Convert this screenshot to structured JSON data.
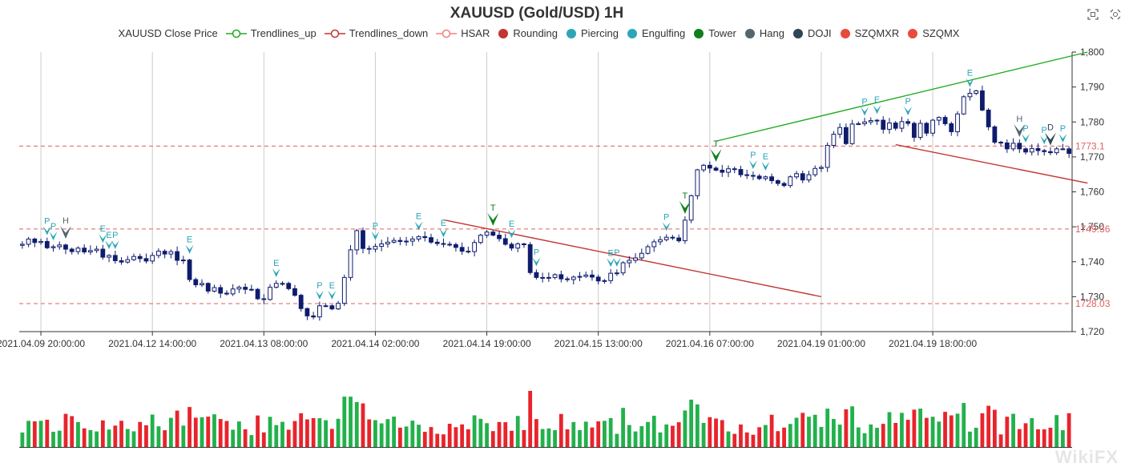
{
  "title": "XAUUSD (Gold/USD) 1H",
  "toolbox": {
    "zoom_icon": "zoom-icon",
    "restore_icon": "restore-icon"
  },
  "legend": [
    {
      "label": "XAUUSD Close Price",
      "symbol": "none",
      "color": "#333333"
    },
    {
      "label": "Trendlines_up",
      "symbol": "line-circle",
      "color": "#22aa22"
    },
    {
      "label": "Trendlines_down",
      "symbol": "line-circle",
      "color": "#c23531"
    },
    {
      "label": "HSAR",
      "symbol": "line-circle",
      "color": "#f08080"
    },
    {
      "label": "Rounding",
      "symbol": "dot",
      "color": "#c23531"
    },
    {
      "label": "Piercing",
      "symbol": "dot",
      "color": "#2ca6b7"
    },
    {
      "label": "Engulfing",
      "symbol": "dot",
      "color": "#2ca6b7"
    },
    {
      "label": "Tower",
      "symbol": "dot",
      "color": "#0e7f1b"
    },
    {
      "label": "Hang",
      "symbol": "dot",
      "color": "#546570"
    },
    {
      "label": "DOJI",
      "symbol": "dot",
      "color": "#2f4554"
    },
    {
      "label": "SZQMXR",
      "symbol": "dot",
      "color": "#e84b3c"
    },
    {
      "label": "SZQMX",
      "symbol": "dot",
      "color": "#e84b3c"
    }
  ],
  "watermark": "WikiFX",
  "colors": {
    "candle": "#0f1c6d",
    "volume_up": "#22b14c",
    "volume_down": "#e8242c",
    "trend_up": "#22aa22",
    "trend_down": "#c23531",
    "level": "#e06060",
    "grid": "#cccccc",
    "piercing": "#2ca6b7",
    "tower": "#0e7f1b",
    "hang": "#546570",
    "doji": "#2f4554"
  },
  "chart_data": {
    "type": "candlestick",
    "title": "XAUUSD (Gold/USD) 1H",
    "y_axis": {
      "min": 1720,
      "max": 1800,
      "ticks": [
        "1,720",
        "1,730",
        "1,740",
        "1,750",
        "1,760",
        "1,770",
        "1,780",
        "1,790",
        "1,800"
      ],
      "position": "right"
    },
    "x_axis": {
      "tick_labels": [
        "2021.04.09 20:00:00",
        "2021.04.12 14:00:00",
        "2021.04.13 08:00:00",
        "2021.04.14 02:00:00",
        "2021.04.14 19:00:00",
        "2021.04.15 13:00:00",
        "2021.04.16 07:00:00",
        "2021.04.19 01:00:00",
        "2021.04.19 18:00:00"
      ],
      "tick_indices": [
        3,
        21,
        39,
        57,
        75,
        93,
        111,
        129,
        147
      ]
    },
    "closes": [
      1745,
      1746.5,
      1745.5,
      1745.8,
      1744,
      1744.3,
      1744.8,
      1743.6,
      1742.9,
      1743.9,
      1742.8,
      1743.2,
      1743.6,
      1741.3,
      1741.8,
      1740.3,
      1739.9,
      1740.6,
      1741.5,
      1740.9,
      1740.2,
      1741.8,
      1743,
      1742.2,
      1742.9,
      1740.4,
      1740.5,
      1734.9,
      1733.4,
      1733.8,
      1731.6,
      1732.6,
      1731,
      1730.8,
      1732.2,
      1732.7,
      1732.1,
      1732.1,
      1729.4,
      1729.2,
      1732.7,
      1733.8,
      1733.8,
      1732.3,
      1730.4,
      1726.6,
      1724.5,
      1724.2,
      1727.4,
      1727.4,
      1726.5,
      1728.1,
      1735.5,
      1743.4,
      1748.9,
      1743.8,
      1743.6,
      1744.4,
      1745.1,
      1745.6,
      1746.1,
      1745.8,
      1745.9,
      1746.5,
      1747.2,
      1746.9,
      1745.6,
      1745.2,
      1745,
      1744.9,
      1744.1,
      1743,
      1742.9,
      1745.5,
      1747.6,
      1748.5,
      1747.6,
      1746.6,
      1745,
      1743.9,
      1745.1,
      1744.9,
      1736.9,
      1735.5,
      1735.5,
      1735.5,
      1736.3,
      1735.1,
      1734.9,
      1735.6,
      1735.8,
      1736.2,
      1735.6,
      1734.5,
      1734.6,
      1736.7,
      1736.8,
      1739.7,
      1740.4,
      1741.1,
      1742.4,
      1744.3,
      1745.7,
      1746.3,
      1747,
      1746.8,
      1746,
      1751.9,
      1758.9,
      1766.3,
      1767.6,
      1766.8,
      1766.2,
      1765.6,
      1766.6,
      1766.4,
      1764.9,
      1764.7,
      1764.5,
      1763.8,
      1764.3,
      1763.2,
      1762.4,
      1761.8,
      1764.3,
      1765.2,
      1763.4,
      1764.9,
      1766.7,
      1767,
      1773.3,
      1776.5,
      1778.4,
      1773.8,
      1779.4,
      1779.5,
      1780,
      1780.4,
      1780.5,
      1777.9,
      1779.7,
      1778.2,
      1780.1,
      1779.6,
      1775.6,
      1779.6,
      1776.8,
      1780.5,
      1781.3,
      1779.5,
      1777.2,
      1782.3,
      1787.2,
      1788.2,
      1788.9,
      1783.4,
      1778.6,
      1774.2,
      1774,
      1772.3,
      1773.9,
      1772.3,
      1771.4,
      1772.4,
      1771.8,
      1771.5,
      1771.2,
      1772.3,
      1772.3,
      1771
    ],
    "levels": [
      {
        "value": 1773.1,
        "label": "1773.1"
      },
      {
        "value": 1749.36,
        "label": "1749.36"
      },
      {
        "value": 1728.03,
        "label": "1728.03"
      }
    ],
    "trendlines_up": [
      {
        "from": [
          112,
          1774.5
        ],
        "to": [
          172,
          1800
        ]
      }
    ],
    "trendlines_down": [
      {
        "from": [
          68,
          1752
        ],
        "to": [
          129,
          1730
        ]
      },
      {
        "from": [
          141,
          1773.5
        ],
        "to": [
          172,
          1762.5
        ]
      }
    ],
    "pattern_markers": [
      {
        "index": 4,
        "label": "P",
        "type": "piercing"
      },
      {
        "index": 5,
        "label": "P",
        "type": "piercing"
      },
      {
        "index": 7,
        "label": "H",
        "type": "hang"
      },
      {
        "index": 13,
        "label": "E",
        "type": "piercing"
      },
      {
        "index": 14,
        "label": "E",
        "type": "piercing"
      },
      {
        "index": 15,
        "label": "P",
        "type": "piercing"
      },
      {
        "index": 27,
        "label": "E",
        "type": "piercing"
      },
      {
        "index": 41,
        "label": "E",
        "type": "piercing"
      },
      {
        "index": 48,
        "label": "P",
        "type": "piercing"
      },
      {
        "index": 50,
        "label": "E",
        "type": "piercing"
      },
      {
        "index": 57,
        "label": "P",
        "type": "piercing"
      },
      {
        "index": 64,
        "label": "E",
        "type": "piercing"
      },
      {
        "index": 68,
        "label": "E",
        "type": "piercing"
      },
      {
        "index": 76,
        "label": "T",
        "type": "tower"
      },
      {
        "index": 79,
        "label": "E",
        "type": "piercing"
      },
      {
        "index": 83,
        "label": "P",
        "type": "piercing"
      },
      {
        "index": 95,
        "label": "E",
        "type": "piercing"
      },
      {
        "index": 96,
        "label": "P",
        "type": "piercing"
      },
      {
        "index": 104,
        "label": "P",
        "type": "piercing"
      },
      {
        "index": 107,
        "label": "T",
        "type": "tower"
      },
      {
        "index": 112,
        "label": "T",
        "type": "tower"
      },
      {
        "index": 118,
        "label": "P",
        "type": "piercing"
      },
      {
        "index": 120,
        "label": "E",
        "type": "piercing"
      },
      {
        "index": 136,
        "label": "P",
        "type": "piercing"
      },
      {
        "index": 138,
        "label": "E",
        "type": "piercing"
      },
      {
        "index": 143,
        "label": "P",
        "type": "piercing"
      },
      {
        "index": 153,
        "label": "E",
        "type": "piercing"
      },
      {
        "index": 161,
        "label": "H",
        "type": "hang"
      },
      {
        "index": 162,
        "label": "P",
        "type": "piercing"
      },
      {
        "index": 165,
        "label": "P",
        "type": "piercing"
      },
      {
        "index": 166,
        "label": "D",
        "type": "doji"
      },
      {
        "index": 168,
        "label": "P",
        "type": "piercing"
      }
    ]
  }
}
